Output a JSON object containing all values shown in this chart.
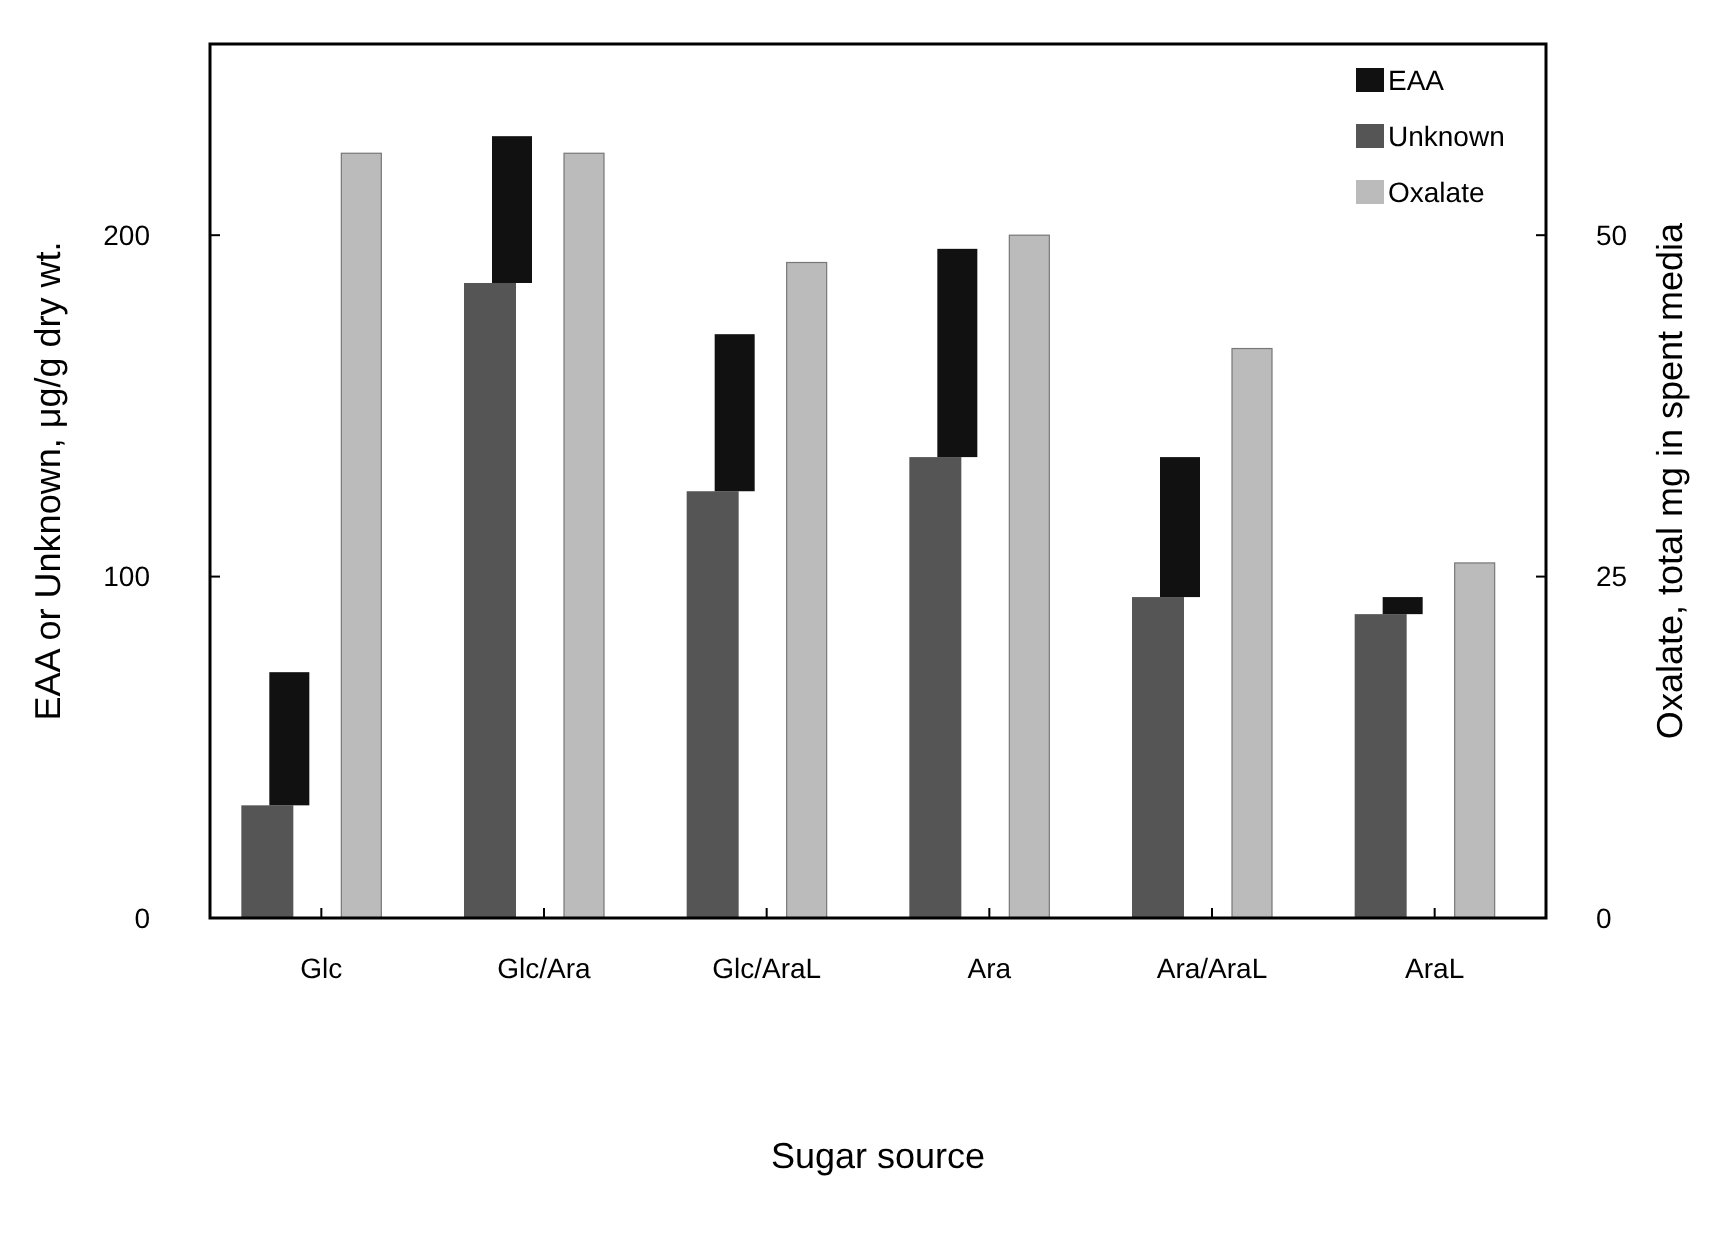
{
  "chart_data": {
    "type": "bar",
    "xlabel": "Sugar source",
    "ylabel": "EAA or Unknown, μg/g dry wt.",
    "y2label": "Oxalate, total mg in spent media",
    "categories": [
      "Glc",
      "Glc/Ara",
      "Glc/AraL",
      "Ara",
      "Ara/AraL",
      "AraL"
    ],
    "stacked": true,
    "legend": "top right",
    "grid": false,
    "ylim": [
      0,
      256
    ],
    "yticks": [
      0,
      100,
      200
    ],
    "y2lim": [
      0,
      64
    ],
    "y2ticks": [
      0,
      25,
      50
    ],
    "series": [
      {
        "name": "Unknown",
        "color": "#555555",
        "values": [
          33,
          186,
          125,
          135,
          94,
          89
        ]
      },
      {
        "name": "EAA",
        "color": "#111111",
        "values": [
          39,
          43,
          46,
          61,
          41,
          5
        ]
      },
      {
        "name": "Oxalate",
        "color": "#bbbbbb",
        "axis": "y2",
        "values": [
          56,
          56,
          48,
          50,
          41.7,
          26
        ]
      }
    ]
  }
}
